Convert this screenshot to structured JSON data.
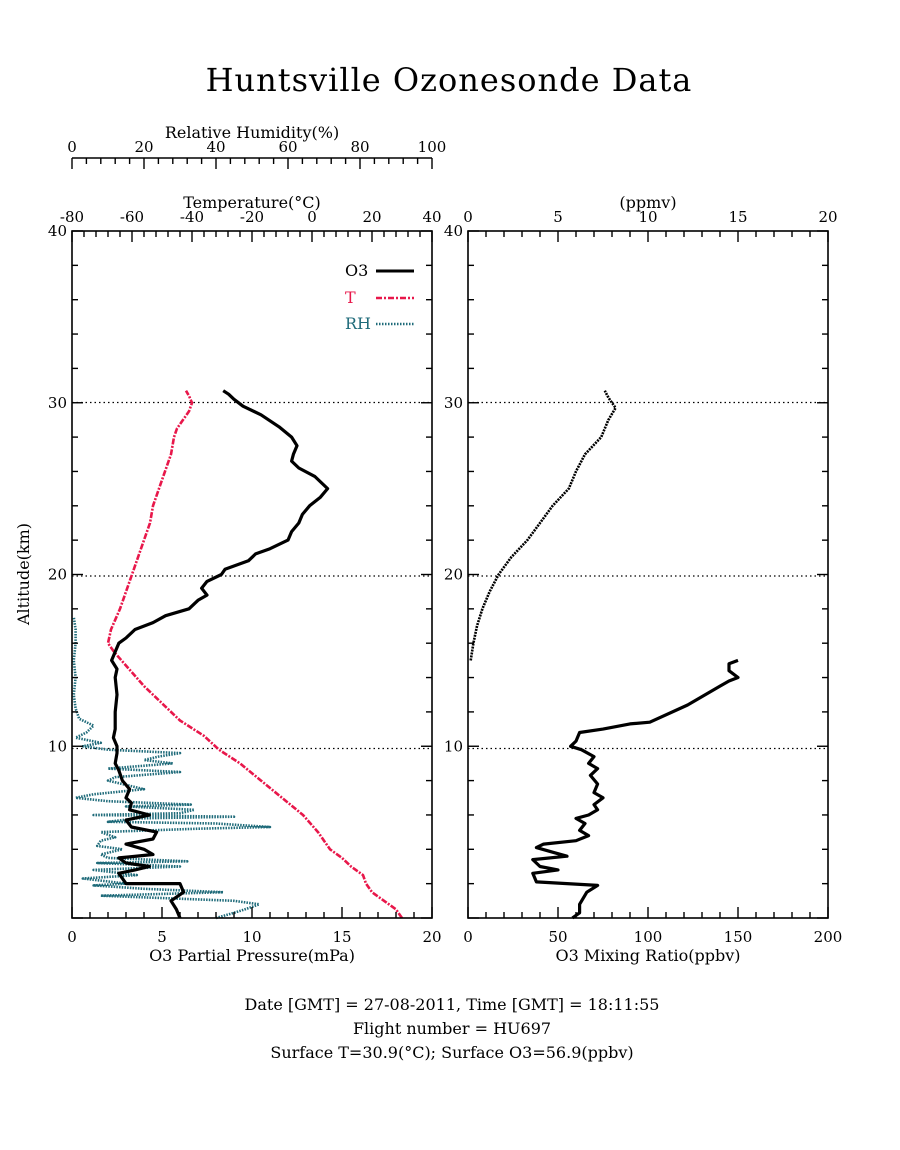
{
  "title": "Huntsville Ozonesonde Data",
  "footer": {
    "line1": "Date [GMT] = 27-08-2011,  Time [GMT] = 18:11:55",
    "line2": "Flight number = HU697",
    "line3": "Surface T=30.9(°C); Surface O3=56.9(ppbv)"
  },
  "colors": {
    "o3": "#000000",
    "temperature": "#e8174a",
    "rh": "#1f6b7a"
  },
  "chart_data": [
    {
      "type": "line",
      "panel": "left",
      "ylabel": "Altitude(km)",
      "ylim": [
        0,
        40
      ],
      "yticks": [
        10,
        20,
        30,
        40
      ],
      "grid": "dotted horizontal lines at 10, 20, 30 km",
      "legend_placement": "top-right",
      "axes": {
        "o3_partial_pressure": {
          "label": "O3 Partial Pressure(mPa)",
          "range": [
            0,
            20
          ],
          "ticks": [
            0,
            5,
            10,
            15,
            20
          ]
        },
        "temperature": {
          "label": "Temperature(°C)",
          "range": [
            -80,
            40
          ],
          "ticks": [
            -80,
            -60,
            -40,
            -20,
            0,
            20,
            40
          ]
        },
        "relative_humidity": {
          "label": "Relative Humidity(%)",
          "range": [
            0,
            100
          ],
          "ticks": [
            0,
            20,
            40,
            60,
            80,
            100
          ]
        }
      },
      "series": [
        {
          "name": "O3",
          "axis": "o3_partial_pressure",
          "points": [
            [
              6.0,
              0.0
            ],
            [
              5.8,
              0.5
            ],
            [
              5.5,
              1.0
            ],
            [
              6.2,
              1.5
            ],
            [
              6.0,
              2.0
            ],
            [
              3.0,
              2.0
            ],
            [
              2.6,
              2.6
            ],
            [
              3.5,
              2.8
            ],
            [
              4.3,
              3.0
            ],
            [
              3.0,
              3.2
            ],
            [
              2.6,
              3.5
            ],
            [
              4.5,
              3.7
            ],
            [
              4.0,
              4.0
            ],
            [
              3.0,
              4.3
            ],
            [
              4.5,
              4.6
            ],
            [
              4.7,
              5.0
            ],
            [
              3.3,
              5.3
            ],
            [
              3.0,
              5.7
            ],
            [
              4.3,
              6.0
            ],
            [
              3.2,
              6.3
            ],
            [
              3.3,
              6.7
            ],
            [
              3.0,
              7.0
            ],
            [
              3.2,
              7.5
            ],
            [
              2.8,
              8.0
            ],
            [
              2.6,
              8.6
            ],
            [
              2.4,
              9.0
            ],
            [
              2.5,
              9.6
            ],
            [
              2.5,
              10.0
            ],
            [
              2.3,
              10.5
            ],
            [
              2.4,
              11.0
            ],
            [
              2.4,
              12.0
            ],
            [
              2.5,
              13.0
            ],
            [
              2.4,
              14.0
            ],
            [
              2.5,
              14.5
            ],
            [
              2.2,
              15.0
            ],
            [
              2.4,
              15.5
            ],
            [
              2.6,
              16.0
            ],
            [
              3.0,
              16.3
            ],
            [
              3.5,
              16.8
            ],
            [
              4.5,
              17.2
            ],
            [
              5.2,
              17.6
            ],
            [
              6.5,
              18.0
            ],
            [
              7.0,
              18.5
            ],
            [
              7.5,
              18.8
            ],
            [
              7.2,
              19.2
            ],
            [
              7.5,
              19.6
            ],
            [
              8.3,
              20.0
            ],
            [
              8.5,
              20.3
            ],
            [
              9.8,
              20.8
            ],
            [
              10.2,
              21.2
            ],
            [
              11.0,
              21.5
            ],
            [
              12.0,
              22.0
            ],
            [
              12.2,
              22.5
            ],
            [
              12.6,
              23.0
            ],
            [
              12.8,
              23.5
            ],
            [
              13.2,
              24.0
            ],
            [
              13.8,
              24.5
            ],
            [
              14.2,
              25.0
            ],
            [
              13.5,
              25.7
            ],
            [
              12.6,
              26.2
            ],
            [
              12.2,
              26.6
            ],
            [
              12.3,
              27.0
            ],
            [
              12.5,
              27.5
            ],
            [
              12.2,
              28.0
            ],
            [
              11.5,
              28.6
            ],
            [
              10.5,
              29.3
            ],
            [
              9.5,
              29.8
            ],
            [
              9.0,
              30.2
            ],
            [
              8.7,
              30.5
            ],
            [
              8.4,
              30.7
            ]
          ]
        },
        {
          "name": "T",
          "axis": "temperature",
          "points": [
            [
              30.0,
              0.0
            ],
            [
              28.0,
              0.5
            ],
            [
              24.0,
              1.0
            ],
            [
              20.0,
              1.5
            ],
            [
              18.0,
              2.0
            ],
            [
              17.0,
              2.5
            ],
            [
              13.0,
              3.0
            ],
            [
              10.0,
              3.5
            ],
            [
              6.0,
              4.0
            ],
            [
              2.0,
              5.0
            ],
            [
              -3.0,
              6.0
            ],
            [
              -10.0,
              7.0
            ],
            [
              -17.0,
              8.0
            ],
            [
              -24.0,
              9.0
            ],
            [
              -31.0,
              9.8
            ],
            [
              -36.0,
              10.6
            ],
            [
              -44.0,
              11.5
            ],
            [
              -50.0,
              12.5
            ],
            [
              -56.0,
              13.5
            ],
            [
              -61.0,
              14.5
            ],
            [
              -66.0,
              15.5
            ],
            [
              -68.0,
              16.0
            ],
            [
              -67.0,
              16.8
            ],
            [
              -64.0,
              18.0
            ],
            [
              -62.0,
              19.0
            ],
            [
              -60.0,
              20.0
            ],
            [
              -58.0,
              21.0
            ],
            [
              -56.0,
              22.0
            ],
            [
              -54.0,
              23.0
            ],
            [
              -53.0,
              24.0
            ],
            [
              -51.0,
              25.0
            ],
            [
              -49.0,
              26.0
            ],
            [
              -47.0,
              27.0
            ],
            [
              -46.0,
              28.0
            ],
            [
              -45.0,
              28.5
            ],
            [
              -43.0,
              29.0
            ],
            [
              -41.0,
              29.5
            ],
            [
              -40.0,
              30.0
            ],
            [
              -41.0,
              30.4
            ],
            [
              -42.0,
              30.7
            ]
          ]
        },
        {
          "name": "RH",
          "axis": "relative_humidity",
          "points": [
            [
              40.0,
              0.0
            ],
            [
              45.0,
              0.3
            ],
            [
              48.0,
              0.5
            ],
            [
              52.0,
              0.8
            ],
            [
              45.0,
              1.0
            ],
            [
              8.0,
              1.3
            ],
            [
              42.0,
              1.5
            ],
            [
              20.0,
              1.7
            ],
            [
              6.0,
              1.9
            ],
            [
              15.0,
              2.0
            ],
            [
              3.0,
              2.3
            ],
            [
              18.0,
              2.5
            ],
            [
              6.0,
              2.8
            ],
            [
              30.0,
              3.0
            ],
            [
              7.0,
              3.2
            ],
            [
              32.0,
              3.3
            ],
            [
              10.0,
              3.5
            ],
            [
              8.0,
              3.7
            ],
            [
              14.0,
              4.0
            ],
            [
              7.0,
              4.2
            ],
            [
              8.0,
              4.5
            ],
            [
              12.0,
              4.7
            ],
            [
              8.0,
              5.0
            ],
            [
              35.0,
              5.2
            ],
            [
              55.0,
              5.3
            ],
            [
              40.0,
              5.5
            ],
            [
              10.0,
              5.6
            ],
            [
              18.0,
              5.8
            ],
            [
              45.0,
              5.9
            ],
            [
              6.0,
              6.0
            ],
            [
              30.0,
              6.1
            ],
            [
              34.0,
              6.3
            ],
            [
              15.0,
              6.5
            ],
            [
              33.0,
              6.6
            ],
            [
              10.0,
              6.8
            ],
            [
              1.0,
              7.0
            ],
            [
              6.0,
              7.2
            ],
            [
              20.0,
              7.5
            ],
            [
              14.0,
              7.8
            ],
            [
              10.0,
              8.0
            ],
            [
              12.0,
              8.2
            ],
            [
              30.0,
              8.5
            ],
            [
              10.0,
              8.7
            ],
            [
              28.0,
              9.0
            ],
            [
              20.0,
              9.2
            ],
            [
              24.0,
              9.4
            ],
            [
              30.0,
              9.6
            ],
            [
              10.0,
              9.8
            ],
            [
              3.0,
              10.0
            ],
            [
              8.0,
              10.2
            ],
            [
              1.0,
              10.5
            ],
            [
              4.0,
              10.8
            ],
            [
              6.0,
              11.2
            ],
            [
              2.0,
              11.6
            ],
            [
              1.0,
              12.2
            ],
            [
              0.5,
              13.0
            ],
            [
              1.0,
              14.0
            ],
            [
              0.5,
              15.0
            ],
            [
              1.0,
              16.0
            ],
            [
              1.0,
              16.8
            ],
            [
              0.5,
              17.5
            ]
          ]
        }
      ]
    },
    {
      "type": "line",
      "panel": "right",
      "ylim": [
        0,
        40
      ],
      "yticks": [
        10,
        20,
        30,
        40
      ],
      "grid": "dotted horizontal lines at 10, 20, 30 km",
      "axes": {
        "o3_mixing_ratio": {
          "label": "O3 Mixing Ratio(ppbv)",
          "range": [
            0,
            200
          ],
          "ticks": [
            0,
            50,
            100,
            150,
            200
          ]
        },
        "ppmv": {
          "label": "(ppmv)",
          "range": [
            0,
            20
          ],
          "ticks": [
            0,
            5,
            10,
            15,
            20
          ]
        }
      },
      "series": [
        {
          "axis": "o3_mixing_ratio",
          "unit": "ppbv",
          "points": [
            [
              58.0,
              0.0
            ],
            [
              62.0,
              0.3
            ],
            [
              62.0,
              0.8
            ],
            [
              66.0,
              1.5
            ],
            [
              72.0,
              1.9
            ],
            [
              55.0,
              2.0
            ],
            [
              38.0,
              2.1
            ],
            [
              36.0,
              2.6
            ],
            [
              50.0,
              2.8
            ],
            [
              40.0,
              3.0
            ],
            [
              36.0,
              3.4
            ],
            [
              55.0,
              3.6
            ],
            [
              48.0,
              3.8
            ],
            [
              38.0,
              4.1
            ],
            [
              42.0,
              4.3
            ],
            [
              60.0,
              4.5
            ],
            [
              67.0,
              4.8
            ],
            [
              62.0,
              5.1
            ],
            [
              65.0,
              5.5
            ],
            [
              60.0,
              5.8
            ],
            [
              67.0,
              6.0
            ],
            [
              72.0,
              6.3
            ],
            [
              70.0,
              6.6
            ],
            [
              75.0,
              7.0
            ],
            [
              70.0,
              7.3
            ],
            [
              72.0,
              7.8
            ],
            [
              68.0,
              8.3
            ],
            [
              72.0,
              8.7
            ],
            [
              67.0,
              9.0
            ],
            [
              70.0,
              9.4
            ],
            [
              63.0,
              9.8
            ],
            [
              57.0,
              10.0
            ],
            [
              60.0,
              10.3
            ],
            [
              62.0,
              10.8
            ],
            [
              75.0,
              11.0
            ],
            [
              90.0,
              11.3
            ],
            [
              101.0,
              11.4
            ],
            [
              122.0,
              12.4
            ],
            [
              140.0,
              13.5
            ],
            [
              145.0,
              13.8
            ],
            [
              150.0,
              14.0
            ],
            [
              145.0,
              14.4
            ],
            [
              145.0,
              14.8
            ],
            [
              150.0,
              15.0
            ]
          ]
        },
        {
          "axis": "ppmv",
          "unit": "ppmv",
          "points": [
            [
              0.15,
              15.0
            ],
            [
              0.3,
              16.0
            ],
            [
              0.5,
              17.0
            ],
            [
              0.8,
              18.0
            ],
            [
              1.2,
              19.0
            ],
            [
              1.7,
              20.0
            ],
            [
              2.4,
              21.0
            ],
            [
              3.3,
              22.0
            ],
            [
              4.0,
              23.0
            ],
            [
              4.7,
              24.0
            ],
            [
              5.6,
              25.0
            ],
            [
              6.0,
              26.0
            ],
            [
              6.5,
              27.0
            ],
            [
              7.4,
              28.0
            ],
            [
              7.8,
              29.0
            ],
            [
              8.2,
              29.7
            ],
            [
              7.8,
              30.3
            ],
            [
              7.6,
              30.7
            ]
          ]
        }
      ]
    }
  ]
}
